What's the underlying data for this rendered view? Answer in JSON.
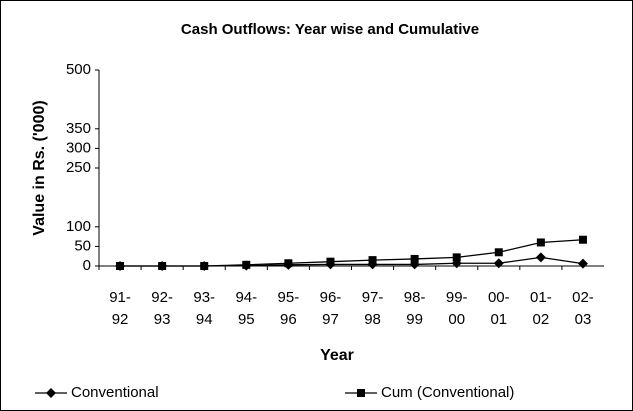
{
  "chart_data": {
    "type": "line",
    "title": "Cash Outflows: Year wise and Cumulative",
    "xlabel": "Year",
    "ylabel": "Value in Rs. ('000)",
    "categories": [
      "91-92",
      "92-93",
      "93-94",
      "94-95",
      "95-96",
      "96-97",
      "97-98",
      "98-99",
      "99-00",
      "00-01",
      "01-02",
      "02-03"
    ],
    "series": [
      {
        "name": "Conventional",
        "color": "#000000",
        "marker": "diamond",
        "values": [
          0,
          0,
          0,
          1,
          3,
          4,
          4,
          4,
          7,
          7,
          22,
          6
        ]
      },
      {
        "name": "Cum (Conventional)",
        "color": "#000000",
        "marker": "square",
        "values": [
          0,
          0,
          0,
          3,
          7,
          11,
          15,
          18,
          22,
          35,
          60,
          67
        ]
      }
    ],
    "ylim": [
      0,
      500
    ],
    "yticks": [
      0,
      50,
      100,
      250,
      300,
      350,
      500
    ],
    "grid": false,
    "legend": "bottom"
  }
}
